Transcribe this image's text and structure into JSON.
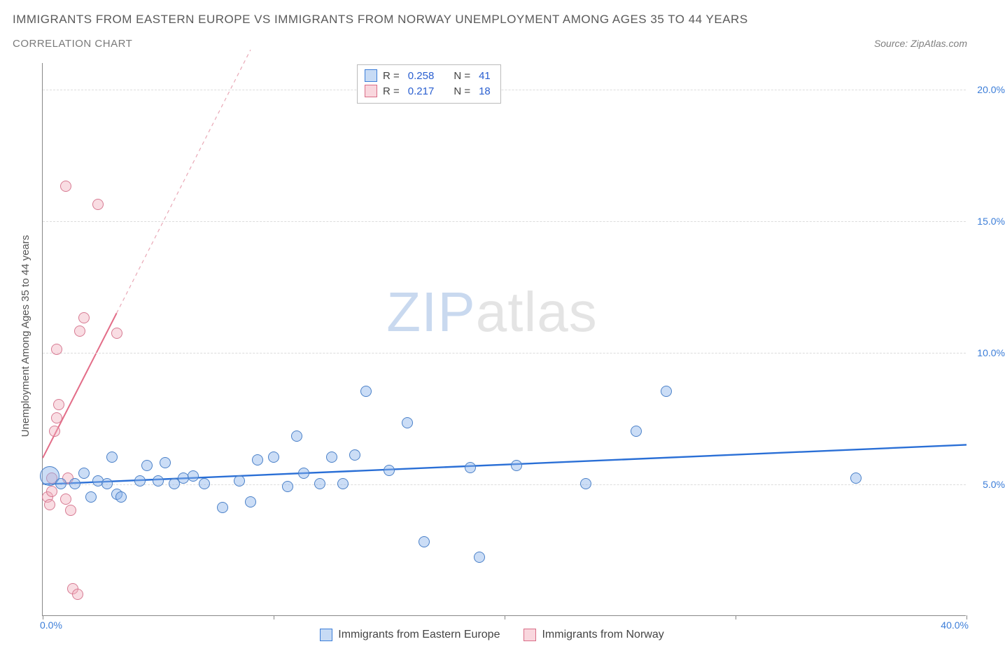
{
  "title": "IMMIGRANTS FROM EASTERN EUROPE VS IMMIGRANTS FROM NORWAY UNEMPLOYMENT AMONG AGES 35 TO 44 YEARS",
  "subtitle": "CORRELATION CHART",
  "source": "Source: ZipAtlas.com",
  "ylabel": "Unemployment Among Ages 35 to 44 years",
  "watermark": {
    "left": "ZIP",
    "right": "atlas"
  },
  "chart": {
    "type": "scatter",
    "xlim": [
      0,
      40
    ],
    "ylim": [
      0,
      21
    ],
    "y_gridlines": [
      5,
      10,
      15,
      20
    ],
    "y_tick_labels": [
      "5.0%",
      "10.0%",
      "15.0%",
      "20.0%"
    ],
    "x_tick_marks": [
      0,
      10,
      20,
      30,
      40
    ],
    "x_left_label": "0.0%",
    "x_right_label": "40.0%",
    "grid_color": "#dcdcdc",
    "axis_color": "#888888",
    "background": "#ffffff",
    "point_radius": 8,
    "series": [
      {
        "name": "Immigrants from Eastern Europe",
        "color_fill": "rgba(140,180,235,0.45)",
        "color_stroke": "#4a80c8",
        "R": "0.258",
        "N": "41",
        "trend": {
          "x1": 0,
          "y1": 5.0,
          "x2": 40,
          "y2": 6.5,
          "color": "#2a6fd6",
          "width": 2.4,
          "dash": null
        },
        "points": [
          {
            "x": 0.3,
            "y": 5.3,
            "r": 14
          },
          {
            "x": 0.8,
            "y": 5.0
          },
          {
            "x": 1.4,
            "y": 5.0
          },
          {
            "x": 1.8,
            "y": 5.4
          },
          {
            "x": 2.1,
            "y": 4.5
          },
          {
            "x": 2.4,
            "y": 5.1
          },
          {
            "x": 2.8,
            "y": 5.0
          },
          {
            "x": 3.0,
            "y": 6.0
          },
          {
            "x": 3.2,
            "y": 4.6
          },
          {
            "x": 3.4,
            "y": 4.5
          },
          {
            "x": 4.2,
            "y": 5.1
          },
          {
            "x": 4.5,
            "y": 5.7
          },
          {
            "x": 5.0,
            "y": 5.1
          },
          {
            "x": 5.3,
            "y": 5.8
          },
          {
            "x": 5.7,
            "y": 5.0
          },
          {
            "x": 6.1,
            "y": 5.2
          },
          {
            "x": 6.5,
            "y": 5.3
          },
          {
            "x": 7.0,
            "y": 5.0
          },
          {
            "x": 7.8,
            "y": 4.1
          },
          {
            "x": 8.5,
            "y": 5.1
          },
          {
            "x": 9.0,
            "y": 4.3
          },
          {
            "x": 9.3,
            "y": 5.9
          },
          {
            "x": 10.0,
            "y": 6.0
          },
          {
            "x": 10.6,
            "y": 4.9
          },
          {
            "x": 11.0,
            "y": 6.8
          },
          {
            "x": 11.3,
            "y": 5.4
          },
          {
            "x": 12.0,
            "y": 5.0
          },
          {
            "x": 12.5,
            "y": 6.0
          },
          {
            "x": 13.0,
            "y": 5.0
          },
          {
            "x": 13.5,
            "y": 6.1
          },
          {
            "x": 14.0,
            "y": 8.5
          },
          {
            "x": 15.0,
            "y": 5.5
          },
          {
            "x": 15.8,
            "y": 7.3
          },
          {
            "x": 16.5,
            "y": 2.8
          },
          {
            "x": 18.5,
            "y": 5.6
          },
          {
            "x": 18.9,
            "y": 2.2
          },
          {
            "x": 20.5,
            "y": 5.7
          },
          {
            "x": 23.5,
            "y": 5.0
          },
          {
            "x": 25.7,
            "y": 7.0
          },
          {
            "x": 27.0,
            "y": 8.5
          },
          {
            "x": 35.2,
            "y": 5.2
          }
        ]
      },
      {
        "name": "Immigrants from Norway",
        "color_fill": "rgba(240,170,185,0.40)",
        "color_stroke": "#d77a92",
        "R": "0.217",
        "N": "18",
        "trend": {
          "x1": 0,
          "y1": 6.0,
          "x2": 3.2,
          "y2": 11.5,
          "color": "#e36d88",
          "width": 2.0,
          "dash": null
        },
        "trend_ext": {
          "x1": 3.2,
          "y1": 11.5,
          "x2": 9.0,
          "y2": 21.5,
          "color": "#e9a8b6",
          "width": 1.2,
          "dash": "5,5"
        },
        "points": [
          {
            "x": 0.2,
            "y": 4.5
          },
          {
            "x": 0.3,
            "y": 4.2
          },
          {
            "x": 0.4,
            "y": 4.7
          },
          {
            "x": 0.4,
            "y": 5.2
          },
          {
            "x": 0.5,
            "y": 7.0
          },
          {
            "x": 0.6,
            "y": 7.5
          },
          {
            "x": 0.7,
            "y": 8.0
          },
          {
            "x": 0.6,
            "y": 10.1
          },
          {
            "x": 1.0,
            "y": 4.4
          },
          {
            "x": 1.1,
            "y": 5.2
          },
          {
            "x": 1.2,
            "y": 4.0
          },
          {
            "x": 1.3,
            "y": 1.0
          },
          {
            "x": 1.5,
            "y": 0.8
          },
          {
            "x": 1.6,
            "y": 10.8
          },
          {
            "x": 1.8,
            "y": 11.3
          },
          {
            "x": 1.0,
            "y": 16.3
          },
          {
            "x": 2.4,
            "y": 15.6
          },
          {
            "x": 3.2,
            "y": 10.7
          }
        ]
      }
    ]
  },
  "legend_top": {
    "rows": [
      {
        "swatch": "blue",
        "r_label": "R =",
        "r_val": "0.258",
        "n_label": "N =",
        "n_val": "41"
      },
      {
        "swatch": "pink",
        "r_label": "R =",
        "r_val": "0.217",
        "n_label": "N =",
        "n_val": "18"
      }
    ]
  },
  "legend_bottom": [
    {
      "swatch": "blue",
      "label": "Immigrants from Eastern Europe"
    },
    {
      "swatch": "pink",
      "label": "Immigrants from Norway"
    }
  ]
}
